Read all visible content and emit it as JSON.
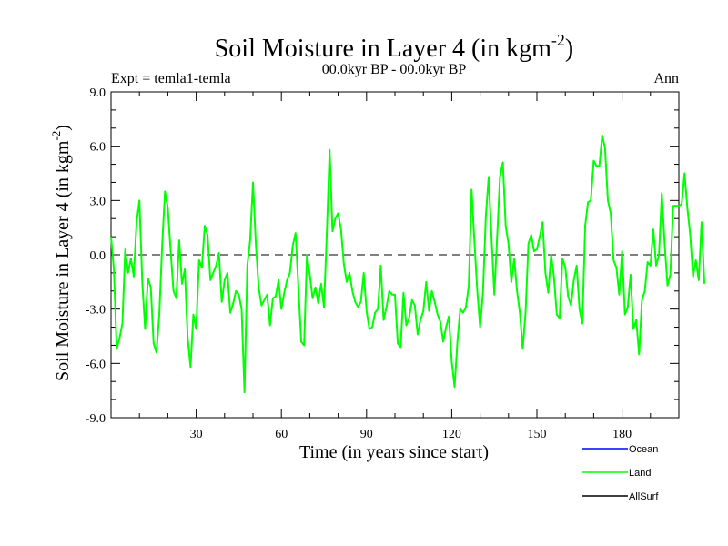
{
  "header": {
    "title_main": "Soil Moisture in Layer 4 (in kgm",
    "title_sup": "-2",
    "title_close": ")",
    "expt": "Expt = temla1-temla",
    "period": "00.0kyr BP - 00.0kyr BP",
    "season": "Ann"
  },
  "colors": {
    "ocean": "#0000ff",
    "land": "#00ff00",
    "allsurf": "#000000",
    "axis": "#000000"
  },
  "chart_data": {
    "type": "line",
    "title": "Soil Moisture in Layer 4 (in kgm-2)",
    "xlabel": "Time (in years since start)",
    "ylabel_main": "Soil Moisture in Layer 4 (in kgm",
    "ylabel_sup": "-2",
    "ylabel_close": ")",
    "xlim": [
      0,
      200
    ],
    "ylim": [
      -9,
      9
    ],
    "x_ticks": [
      30,
      60,
      90,
      120,
      150,
      180
    ],
    "x_tick_labels": [
      "30",
      "60",
      "90",
      "120",
      "150",
      "180"
    ],
    "y_ticks": [
      -9,
      -6,
      -3,
      0,
      3,
      6,
      9
    ],
    "y_tick_labels": [
      "-9.0",
      "-6.0",
      "-3.0",
      "0.0",
      "3.0",
      "6.0",
      "9.0"
    ],
    "zero_line": true,
    "legend": [
      "Ocean",
      "Land",
      "AllSurf"
    ],
    "legend_position": "bottom-right",
    "series": [
      {
        "name": "Land",
        "color": "#00ff00",
        "x_start": 0,
        "x_step": 1,
        "values": [
          1.0,
          -0.8,
          -5.2,
          -4.6,
          -3.8,
          0.3,
          -1.0,
          -0.2,
          -1.2,
          1.8,
          3.0,
          -1.5,
          -4.1,
          -1.3,
          -1.8,
          -4.9,
          -5.4,
          -3.3,
          0.5,
          3.5,
          2.6,
          0.2,
          -2.0,
          -2.4,
          0.8,
          -1.6,
          -0.8,
          -4.6,
          -6.2,
          -3.3,
          -4.1,
          -0.3,
          -0.7,
          1.6,
          1.1,
          -1.4,
          -1.0,
          -0.6,
          0.1,
          -2.6,
          -1.4,
          -1.0,
          -3.2,
          -2.7,
          -2.0,
          -2.2,
          -3.0,
          -7.6,
          -0.6,
          0.8,
          4.0,
          0.6,
          -1.8,
          -2.8,
          -2.5,
          -2.2,
          -3.9,
          -2.4,
          -2.3,
          -1.4,
          -3.0,
          -2.1,
          -1.4,
          -1.0,
          0.5,
          1.2,
          -1.8,
          -4.8,
          -5.0,
          0.0,
          -1.1,
          -2.4,
          -1.8,
          -2.7,
          -1.6,
          -2.9,
          1.2,
          5.8,
          1.3,
          2.0,
          2.3,
          1.4,
          -0.5,
          -1.5,
          -1.0,
          -2.0,
          -2.6,
          -2.9,
          -2.6,
          -1.0,
          -3.1,
          -4.1,
          -4.0,
          -3.2,
          -3.0,
          -0.6,
          -3.6,
          -2.9,
          -2.0,
          -2.2,
          -2.2,
          -4.9,
          -5.1,
          -2.1,
          -3.9,
          -3.5,
          -2.5,
          -2.8,
          -4.4,
          -3.6,
          -3.1,
          -1.5,
          -3.1,
          -2.0,
          -2.6,
          -3.3,
          -3.7,
          -4.8,
          -4.0,
          -3.4,
          -5.9,
          -7.3,
          -4.8,
          -3.0,
          -3.2,
          -2.9,
          -1.7,
          3.6,
          0.7,
          -2.0,
          -4.0,
          -2.1,
          2.1,
          4.3,
          1.0,
          -2.2,
          1.0,
          4.3,
          5.1,
          1.6,
          0.6,
          -1.5,
          -0.2,
          -2.0,
          -3.2,
          -5.2,
          -3.2,
          0.6,
          1.1,
          0.2,
          0.3,
          1.0,
          1.8,
          -1.0,
          -2.1,
          0.0,
          -1.2,
          -3.3,
          -3.5,
          -0.2,
          -0.7,
          -2.3,
          -2.8,
          -1.4,
          -0.6,
          -3.0,
          -3.8,
          1.6,
          2.9,
          3.0,
          5.2,
          4.9,
          4.9,
          6.6,
          5.9,
          3.0,
          2.3,
          -0.3,
          -0.7,
          -2.2,
          0.2,
          -3.3,
          -2.9,
          -1.1,
          -4.1,
          -3.6,
          -5.5,
          -2.5,
          -2.0,
          -0.4,
          -0.6,
          1.4,
          -0.6,
          0.0,
          3.4,
          0.6,
          -1.7,
          -1.1,
          2.7,
          2.7,
          2.7,
          2.8,
          4.5,
          2.6,
          1.1,
          -1.2,
          -0.3,
          -1.4,
          1.8,
          -1.6
        ]
      }
    ]
  }
}
